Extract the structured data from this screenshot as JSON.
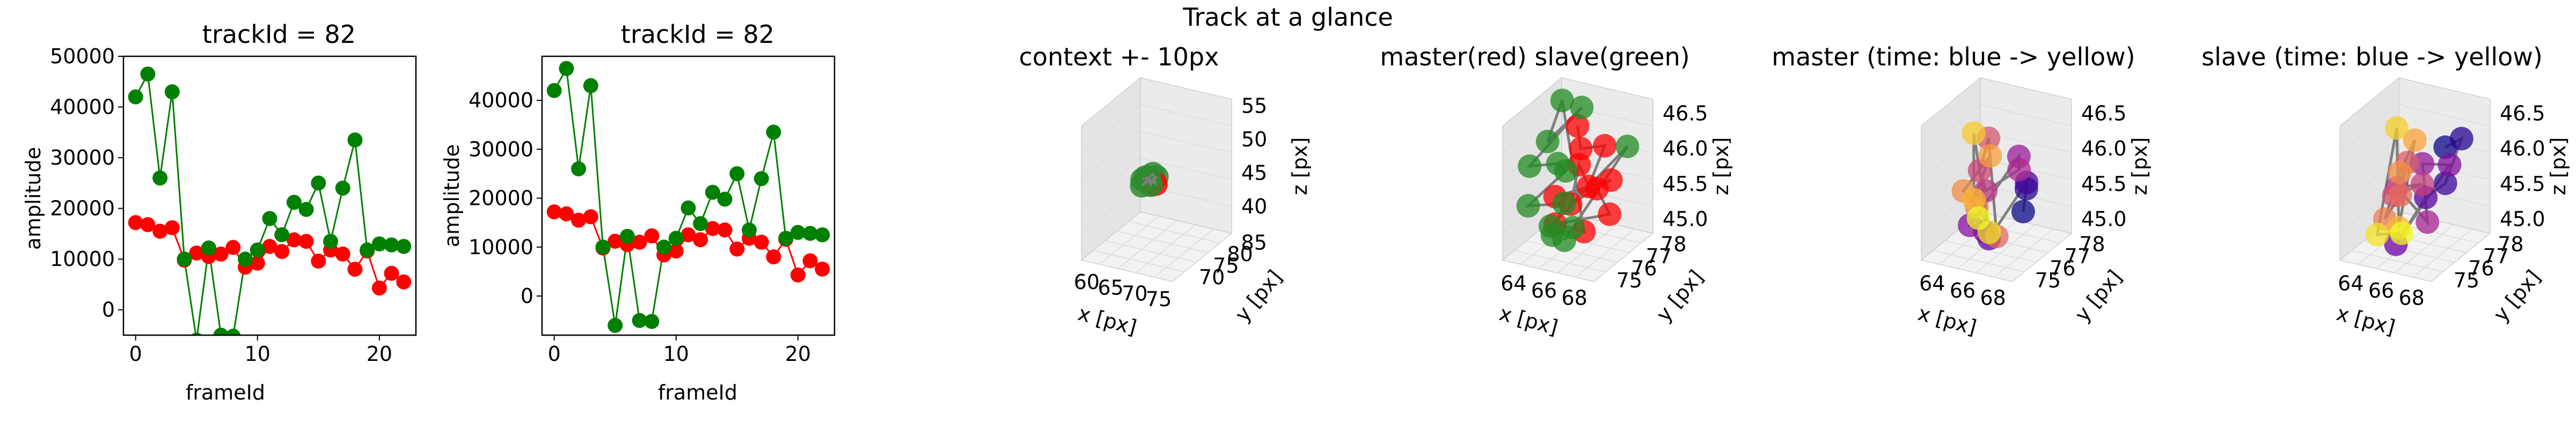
{
  "figure_title": "Track at a glance",
  "chart_data": [
    {
      "id": "amp1",
      "type": "line",
      "title": "trackId = 82",
      "xlabel": "frameId",
      "ylabel": "amplitude",
      "xlim": [
        -1,
        23
      ],
      "ylim": [
        -5000,
        50000
      ],
      "xticks": [
        0,
        10,
        20
      ],
      "yticks": [
        0,
        10000,
        20000,
        30000,
        40000,
        50000
      ],
      "grid": false,
      "series": [
        {
          "color": "#ff0000",
          "x": [
            0,
            1,
            2,
            3,
            4,
            5,
            6,
            7,
            8,
            9,
            10,
            11,
            12,
            13,
            14,
            15,
            16,
            17,
            18,
            19,
            20,
            21,
            22
          ],
          "y": [
            17200,
            16800,
            15500,
            16200,
            9800,
            11200,
            10500,
            11000,
            12300,
            8400,
            9200,
            12500,
            11500,
            13800,
            13500,
            9600,
            11800,
            11000,
            8000,
            11600,
            4300,
            7200,
            5500
          ]
        },
        {
          "color": "#008000",
          "x": [
            0,
            1,
            2,
            3,
            4,
            5,
            6,
            7,
            8,
            9,
            10,
            11,
            12,
            13,
            14,
            15,
            16,
            17,
            18,
            19,
            20,
            21,
            22
          ],
          "y": [
            42000,
            46500,
            26000,
            43000,
            10000,
            -6000,
            12200,
            -5000,
            -5200,
            10000,
            11800,
            18000,
            14800,
            21200,
            19800,
            25000,
            13500,
            24000,
            33500,
            11800,
            13000,
            12800,
            12500
          ]
        }
      ]
    },
    {
      "id": "amp2",
      "type": "line",
      "title": "trackId = 82",
      "xlabel": "frameId",
      "ylabel": "amplitude",
      "xlim": [
        -1,
        23
      ],
      "ylim": [
        -8000,
        49000
      ],
      "xticks": [
        0,
        10,
        20
      ],
      "yticks": [
        0,
        10000,
        20000,
        30000,
        40000
      ],
      "grid": false,
      "series": [
        {
          "color": "#ff0000",
          "x": [
            0,
            1,
            2,
            3,
            4,
            5,
            6,
            7,
            8,
            9,
            10,
            11,
            12,
            13,
            14,
            15,
            16,
            17,
            18,
            19,
            20,
            21,
            22
          ],
          "y": [
            17200,
            16800,
            15500,
            16200,
            9800,
            11200,
            10500,
            11000,
            12300,
            8400,
            9200,
            12500,
            11500,
            13800,
            13500,
            9600,
            11800,
            11000,
            8000,
            11600,
            4300,
            7200,
            5500
          ]
        },
        {
          "color": "#008000",
          "x": [
            0,
            1,
            2,
            3,
            4,
            5,
            6,
            7,
            8,
            9,
            10,
            11,
            12,
            13,
            14,
            15,
            16,
            17,
            18,
            19,
            20,
            21,
            22
          ],
          "y": [
            42000,
            46500,
            26000,
            43000,
            10000,
            -6000,
            12200,
            -5000,
            -5200,
            10000,
            11800,
            18000,
            14800,
            21200,
            19800,
            25000,
            13500,
            24000,
            33500,
            11800,
            13000,
            12800,
            12500
          ]
        }
      ]
    },
    {
      "id": "ctx",
      "type": "scatter",
      "projection": "3d",
      "title": "context +- 10px",
      "xlabel": "x [px]",
      "ylabel": "y [px]",
      "zlabel": "z [px]",
      "xlim": [
        58,
        77
      ],
      "ylim": [
        66,
        87
      ],
      "zlim": [
        36,
        56
      ],
      "xticks": [
        60,
        65,
        70,
        75
      ],
      "yticks": [
        70,
        75,
        80,
        85
      ],
      "zticks": [
        40,
        45,
        50,
        55
      ],
      "points": [
        {
          "x": 64.5,
          "y": 76.5,
          "z": 45.5,
          "color": "#2e8b2e"
        },
        {
          "x": 65.5,
          "y": 77.0,
          "z": 45.8,
          "color": "#2e8b2e"
        },
        {
          "x": 66.5,
          "y": 76.0,
          "z": 45.2,
          "color": "#2e8b2e"
        },
        {
          "x": 67.0,
          "y": 77.5,
          "z": 46.0,
          "color": "#2e8b2e"
        },
        {
          "x": 65.0,
          "y": 75.5,
          "z": 45.0,
          "color": "#2e8b2e"
        },
        {
          "x": 66.0,
          "y": 77.8,
          "z": 46.2,
          "color": "#2e8b2e"
        },
        {
          "x": 67.5,
          "y": 76.3,
          "z": 45.4,
          "color": "#ff0000"
        },
        {
          "x": 64.8,
          "y": 77.2,
          "z": 45.7,
          "color": "#2e8b2e"
        },
        {
          "x": 66.8,
          "y": 75.8,
          "z": 45.3,
          "color": "#2e8b2e"
        },
        {
          "x": 65.8,
          "y": 76.8,
          "z": 45.9,
          "color": "#2e8b2e"
        }
      ]
    },
    {
      "id": "ms",
      "type": "scatter",
      "projection": "3d",
      "title": "master(red) slave(green)",
      "xlabel": "x [px]",
      "ylabel": "y [px]",
      "zlabel": "z [px]",
      "xlim": [
        63,
        69
      ],
      "ylim": [
        74.5,
        78.5
      ],
      "zlim": [
        44.8,
        46.7
      ],
      "xticks": [
        64,
        66,
        68
      ],
      "yticks": [
        75,
        76,
        77,
        78
      ],
      "zticks": [
        45.0,
        45.5,
        46.0,
        46.5
      ],
      "series": [
        {
          "name": "master",
          "color": "#ff0000",
          "points": [
            [
              65.5,
              77.0,
              46.4
            ],
            [
              66.2,
              76.5,
              46.2
            ],
            [
              66.8,
              77.5,
              46.1
            ],
            [
              67.2,
              76.0,
              45.8
            ],
            [
              65.8,
              76.8,
              45.9
            ],
            [
              66.5,
              75.5,
              45.6
            ],
            [
              67.5,
              77.2,
              45.7
            ],
            [
              64.8,
              76.2,
              45.5
            ],
            [
              66.0,
              77.8,
              45.4
            ],
            [
              67.8,
              76.8,
              45.3
            ],
            [
              65.2,
              75.8,
              45.2
            ],
            [
              66.7,
              76.2,
              45.1
            ]
          ]
        },
        {
          "name": "slave",
          "color": "#228b22",
          "points": [
            [
              64.0,
              77.5,
              46.6
            ],
            [
              64.5,
              76.0,
              46.3
            ],
            [
              65.0,
              77.8,
              46.5
            ],
            [
              63.8,
              75.5,
              46.0
            ],
            [
              64.2,
              77.0,
              45.8
            ],
            [
              65.5,
              76.2,
              45.9
            ],
            [
              64.0,
              75.2,
              45.5
            ],
            [
              64.8,
              76.8,
              45.3
            ],
            [
              65.3,
              75.5,
              45.1
            ],
            [
              64.2,
              76.5,
              45.0
            ],
            [
              68.0,
              77.8,
              46.1
            ],
            [
              65.0,
              77.2,
              44.9
            ],
            [
              65.8,
              75.8,
              45.0
            ]
          ]
        }
      ]
    },
    {
      "id": "mt",
      "type": "scatter",
      "projection": "3d",
      "title": "master (time: blue -> yellow)",
      "xlabel": "x [px]",
      "ylabel": "y [px]",
      "zlabel": "z [px]",
      "xlim": [
        63,
        69
      ],
      "ylim": [
        74.5,
        78.5
      ],
      "zlim": [
        44.8,
        46.7
      ],
      "xticks": [
        64,
        66,
        68
      ],
      "yticks": [
        75,
        76,
        77,
        78
      ],
      "zticks": [
        45.0,
        45.5,
        46.0,
        46.5
      ],
      "points": [
        [
          66.5,
          77.8,
          45.1
        ],
        [
          67.0,
          77.5,
          45.5
        ],
        [
          67.5,
          77.0,
          45.7
        ],
        [
          66.0,
          76.0,
          45.0
        ],
        [
          66.2,
          75.5,
          45.2
        ],
        [
          65.5,
          75.2,
          45.3
        ],
        [
          66.8,
          77.2,
          46.0
        ],
        [
          67.2,
          76.8,
          45.9
        ],
        [
          65.5,
          76.3,
          45.6
        ],
        [
          64.8,
          76.6,
          45.8
        ],
        [
          65.0,
          77.0,
          46.2
        ],
        [
          66.7,
          75.8,
          45.1
        ],
        [
          65.2,
          76.0,
          45.4
        ],
        [
          64.8,
          75.5,
          45.7
        ],
        [
          65.3,
          76.8,
          46.0
        ],
        [
          65.0,
          76.0,
          45.5
        ],
        [
          64.8,
          76.2,
          46.4
        ],
        [
          66.5,
          75.5,
          45.2
        ],
        [
          65.5,
          75.8,
          45.3
        ]
      ]
    },
    {
      "id": "st",
      "type": "scatter",
      "projection": "3d",
      "title": "slave (time: blue -> yellow)",
      "xlabel": "x [px]",
      "ylabel": "y [px]",
      "zlabel": "z [px]",
      "xlim": [
        63,
        69
      ],
      "ylim": [
        74.5,
        78.5
      ],
      "zlim": [
        44.8,
        46.7
      ],
      "xticks": [
        64,
        66,
        68
      ],
      "yticks": [
        75,
        76,
        77,
        78
      ],
      "zticks": [
        45.0,
        45.5,
        46.0,
        46.5
      ],
      "points": [
        [
          67.5,
          77.0,
          46.2
        ],
        [
          67.8,
          77.8,
          46.2
        ],
        [
          68.0,
          76.5,
          45.8
        ],
        [
          67.0,
          76.2,
          45.6
        ],
        [
          66.2,
          75.0,
          45.1
        ],
        [
          67.5,
          77.3,
          45.9
        ],
        [
          66.5,
          76.5,
          46.0
        ],
        [
          67.3,
          76.0,
          45.3
        ],
        [
          65.8,
          75.5,
          45.8
        ],
        [
          66.0,
          77.0,
          45.6
        ],
        [
          64.8,
          76.3,
          45.5
        ],
        [
          65.2,
          76.8,
          45.9
        ],
        [
          66.0,
          75.5,
          45.7
        ],
        [
          64.5,
          76.0,
          45.2
        ],
        [
          65.0,
          76.5,
          45.8
        ],
        [
          65.5,
          77.0,
          46.2
        ],
        [
          66.2,
          75.2,
          45.3
        ],
        [
          64.7,
          76.6,
          46.4
        ],
        [
          64.2,
          75.8,
          45.0
        ],
        [
          65.8,
          75.8,
          45.1
        ]
      ]
    }
  ]
}
